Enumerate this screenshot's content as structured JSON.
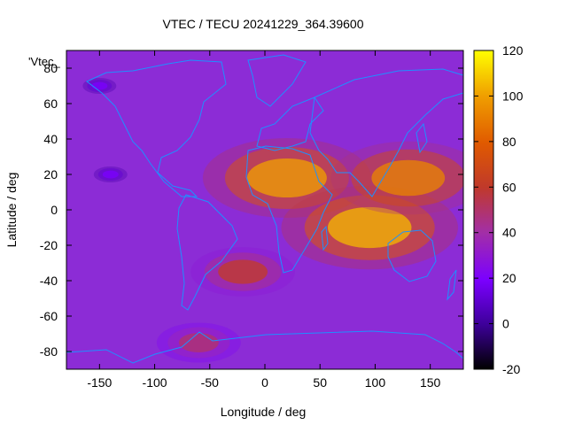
{
  "chart_data": {
    "type": "heatmap",
    "title": "VTEC / TECU 20241229_364.39600",
    "xlabel": "Longitude / deg",
    "ylabel": "Latitude / deg",
    "legend_key": "'Vtec_",
    "xlim": [
      -180,
      180
    ],
    "ylim": [
      -90,
      90
    ],
    "x_ticks": [
      -150,
      -100,
      -50,
      0,
      50,
      100,
      150
    ],
    "y_ticks": [
      -80,
      -60,
      -40,
      -20,
      0,
      20,
      40,
      60,
      80
    ],
    "x_tick_labels": [
      "-150",
      "-100",
      "-50",
      "0",
      "50",
      "100",
      "150"
    ],
    "y_tick_labels": [
      "-80",
      "-60",
      "-40",
      "-20",
      "0",
      "20",
      "40",
      "60",
      "80"
    ],
    "colorbar": {
      "range": [
        -20,
        120
      ],
      "ticks": [
        -20,
        0,
        20,
        40,
        60,
        80,
        100,
        120
      ],
      "tick_labels": [
        "-20",
        "0",
        "20",
        "40",
        "60",
        "80",
        "100",
        "120"
      ],
      "colors": [
        "#000000",
        "#3d0099",
        "#7b00ff",
        "#a32fa6",
        "#c0392b",
        "#e05a00",
        "#f0a000",
        "#ffff00"
      ]
    },
    "map_overlay": "coastlines",
    "coastline_color": "#1e90ff",
    "grid": false,
    "ionization_zones": [
      {
        "lon": 20,
        "lat": 18,
        "value": 100
      },
      {
        "lon": 95,
        "lat": -10,
        "value": 105
      },
      {
        "lon": 130,
        "lat": 18,
        "value": 92
      },
      {
        "lon": -20,
        "lat": -35,
        "value": 62
      },
      {
        "lon": -60,
        "lat": -75,
        "value": 50
      },
      {
        "lon": -140,
        "lat": 20,
        "value": 20
      },
      {
        "lon": -150,
        "lat": 70,
        "value": 20
      }
    ]
  }
}
